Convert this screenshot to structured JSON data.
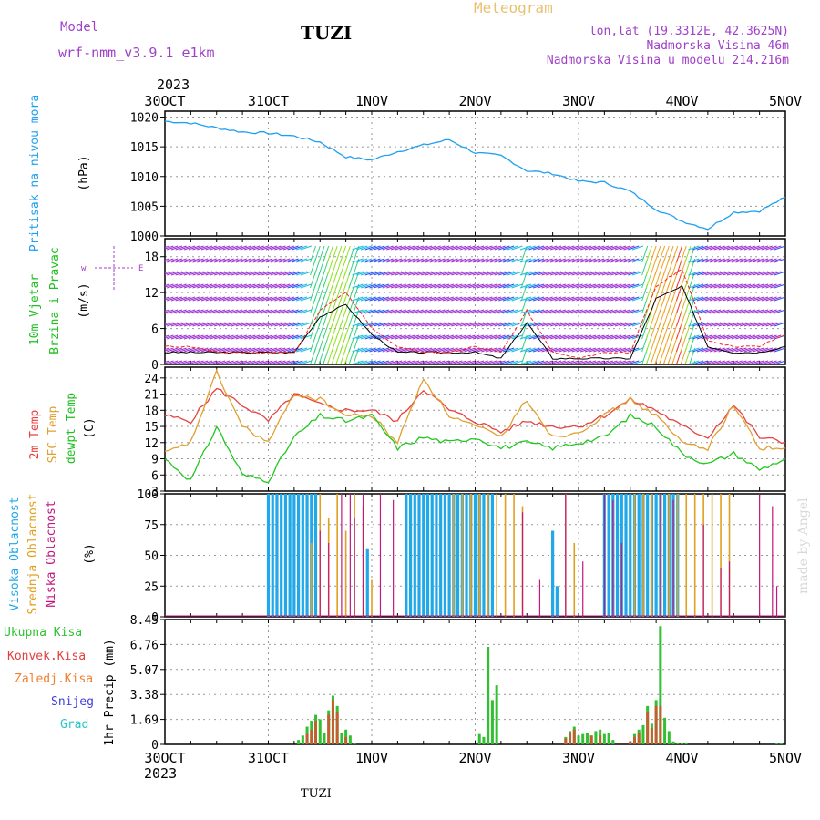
{
  "header": {
    "model_label": "Model",
    "model_name": "wrf-nmm_v3.9.1 e1km",
    "station": "TUZI",
    "meteogram": "Meteogram",
    "coords": "lon,lat (19.3312E, 42.3625N)",
    "elevation": "Nadmorska Visina 46m",
    "model_elevation": "Nadmorska Visina u modelu 214.216m",
    "footer_station": "TUZI",
    "watermark": "made by Angel"
  },
  "colors": {
    "pressure": "#1ea0f0",
    "wind_purple": "#9b30d0",
    "wind_blue": "#2a50f0",
    "temp2m": "#e84040",
    "sfctemp": "#e0a030",
    "dewpt": "#20c820",
    "cloud_high": "#20a8e8",
    "cloud_mid": "#e0a020",
    "cloud_low": "#c01880",
    "precip_total": "#30c030",
    "precip_conv": "#e04040",
    "precip_frz": "#f08030",
    "precip_snow": "#4040e0",
    "precip_grad": "#20c8c8"
  },
  "chart_data": [
    {
      "type": "line",
      "panel": "pressure",
      "ylabel": [
        "Pritisak na nivou mora",
        "(hPa)"
      ],
      "ylim": [
        1000,
        1021
      ],
      "yticks": [
        "1020",
        "1015",
        "1010",
        "1005",
        "1000"
      ],
      "x_hours": [
        0,
        6,
        12,
        18,
        24,
        30,
        36,
        42,
        48,
        54,
        60,
        66,
        72,
        78,
        84,
        90,
        96,
        102,
        108,
        114,
        120,
        126,
        132,
        138,
        144
      ],
      "series": [
        {
          "values": [
            1019.3,
            1019.0,
            1018.2,
            1017.5,
            1017.3,
            1016.8,
            1015.8,
            1013.3,
            1012.8,
            1014.2,
            1015.3,
            1016.2,
            1014.0,
            1013.5,
            1011.0,
            1010.5,
            1009.2,
            1009.0,
            1007.5,
            1004.5,
            1002.5,
            1001.2,
            1004.0,
            1004.2,
            1006.5
          ]
        }
      ]
    },
    {
      "type": "line",
      "panel": "wind",
      "ylabel": [
        "10m Vjetar",
        "Brzina i Pravac",
        "(m/s)"
      ],
      "ylim": [
        0,
        21
      ],
      "yticks": [
        "18",
        "12",
        "6",
        "0"
      ],
      "x_hours": [
        0,
        6,
        12,
        18,
        24,
        30,
        36,
        42,
        48,
        54,
        60,
        66,
        72,
        78,
        84,
        90,
        96,
        102,
        108,
        114,
        120,
        126,
        132,
        138,
        144
      ],
      "series": [
        {
          "name": "speed",
          "values": [
            2,
            2,
            2,
            2,
            2,
            2,
            8,
            10,
            5,
            2,
            2,
            2,
            2,
            1,
            7,
            1,
            1,
            1,
            1,
            11,
            13,
            3,
            2,
            2,
            3
          ]
        },
        {
          "name": "gust",
          "values": [
            3,
            3,
            2,
            2,
            2,
            2,
            9,
            12,
            6,
            3,
            2,
            2,
            3,
            2,
            9,
            2,
            1,
            2,
            2,
            13,
            16,
            4,
            3,
            3,
            5
          ]
        }
      ]
    },
    {
      "type": "line",
      "panel": "temperature",
      "ylabel": [
        "2m Temp",
        "SFC Temp",
        "dewpt Temp",
        "(C)"
      ],
      "ylim": [
        3,
        26
      ],
      "yticks": [
        "24",
        "21",
        "18",
        "15",
        "12",
        "9",
        "6",
        "3"
      ],
      "x_hours": [
        0,
        6,
        12,
        18,
        24,
        30,
        36,
        42,
        48,
        54,
        60,
        66,
        72,
        78,
        84,
        90,
        96,
        102,
        108,
        114,
        120,
        126,
        132,
        138,
        144
      ],
      "series": [
        {
          "name": "2m Temp",
          "values": [
            17,
            16,
            22,
            19,
            16,
            21,
            19,
            18,
            18,
            16,
            22,
            18,
            16,
            14,
            16,
            15,
            15,
            17,
            20,
            18,
            15,
            13,
            19,
            13,
            12
          ]
        },
        {
          "name": "SFC Temp",
          "values": [
            10,
            12,
            25,
            15,
            12,
            21,
            20,
            17,
            17,
            12,
            24,
            17,
            15,
            13,
            20,
            13,
            14,
            17,
            20,
            17,
            12,
            11,
            19,
            11,
            11
          ]
        },
        {
          "name": "dewpt Temp",
          "values": [
            9,
            5,
            15,
            6,
            5,
            13,
            17,
            16,
            17,
            11,
            13,
            12,
            13,
            11,
            12,
            11,
            12,
            13,
            17,
            15,
            10,
            8,
            10,
            7,
            9
          ]
        }
      ]
    },
    {
      "type": "bar",
      "panel": "clouds",
      "ylabel": [
        "Visoka Oblacnost",
        "Srednja Oblacnost",
        "Niska Oblacnost",
        "(%)"
      ],
      "ylim": [
        0,
        100
      ],
      "yticks": [
        "100",
        "75",
        "50",
        "25",
        "0"
      ],
      "series": [
        {
          "name": "Visoka Oblacnost",
          "hours": [
            24,
            25,
            26,
            27,
            28,
            29,
            30,
            31,
            32,
            33,
            34,
            35,
            47,
            56,
            57,
            58,
            59,
            60,
            61,
            62,
            63,
            64,
            65,
            66,
            67,
            68,
            69,
            70,
            71,
            72,
            73,
            74,
            75,
            76,
            90,
            91,
            102,
            103,
            104,
            105,
            106,
            107,
            108,
            109,
            110,
            111,
            112,
            113,
            114,
            115,
            116,
            117,
            118,
            119
          ],
          "values": [
            100,
            100,
            100,
            100,
            100,
            100,
            100,
            100,
            100,
            100,
            100,
            100,
            55,
            100,
            100,
            100,
            100,
            100,
            100,
            100,
            100,
            100,
            100,
            100,
            100,
            100,
            100,
            100,
            100,
            100,
            100,
            100,
            100,
            100,
            70,
            25,
            100,
            100,
            100,
            100,
            100,
            100,
            100,
            100,
            100,
            100,
            100,
            100,
            100,
            100,
            100,
            100,
            100,
            100
          ]
        },
        {
          "name": "Srednja Oblacnost",
          "hours": [
            34,
            36,
            38,
            40,
            42,
            44,
            46,
            48,
            67,
            69,
            71,
            73,
            75,
            77,
            79,
            81,
            83,
            93,
            95,
            109,
            111,
            113,
            115,
            117,
            119,
            121,
            123,
            125,
            127,
            129,
            131
          ],
          "values": [
            60,
            100,
            80,
            100,
            70,
            100,
            90,
            30,
            100,
            100,
            100,
            100,
            100,
            100,
            100,
            100,
            90,
            100,
            60,
            100,
            100,
            100,
            100,
            100,
            100,
            100,
            100,
            100,
            100,
            100,
            100
          ]
        },
        {
          "name": "Niska Oblacnost",
          "hours": [
            36,
            38,
            41,
            43,
            44,
            46,
            50,
            53,
            83,
            87,
            93,
            97,
            102,
            104,
            106,
            115,
            118,
            125,
            129,
            131,
            138,
            141,
            142
          ],
          "values": [
            70,
            60,
            100,
            100,
            80,
            100,
            100,
            95,
            85,
            30,
            100,
            45,
            100,
            95,
            60,
            100,
            95,
            75,
            40,
            45,
            100,
            90,
            25
          ]
        }
      ]
    },
    {
      "type": "bar",
      "panel": "precip",
      "ylabel": [
        "1hr Precip (mm)"
      ],
      "legend": [
        "Ukupna Kisa",
        "Konvek.Kisa",
        "Zaledj.Kisa",
        "Snijeg",
        "Grad"
      ],
      "ylim": [
        0,
        8.45
      ],
      "yticks": [
        "8.45",
        "6.76",
        "5.07",
        "3.38",
        "1.69",
        "0"
      ],
      "series": [
        {
          "name": "Ukupna Kisa",
          "hours": [
            31,
            32,
            33,
            34,
            35,
            36,
            37,
            38,
            39,
            40,
            41,
            42,
            43,
            44,
            73,
            74,
            75,
            76,
            77,
            93,
            94,
            95,
            96,
            97,
            98,
            99,
            100,
            101,
            102,
            103,
            104,
            108,
            109,
            110,
            111,
            112,
            113,
            114,
            115,
            116,
            117,
            118,
            119,
            120,
            121,
            142,
            143
          ],
          "values": [
            0.3,
            0.6,
            1.2,
            1.6,
            2.0,
            1.7,
            0.8,
            2.3,
            3.3,
            2.6,
            0.8,
            1.0,
            0.6,
            0.1,
            0.7,
            0.5,
            6.6,
            3.0,
            4.0,
            0.5,
            0.9,
            1.2,
            0.6,
            0.7,
            0.8,
            0.6,
            0.9,
            1.0,
            0.7,
            0.8,
            0.3,
            0.2,
            0.7,
            1.0,
            1.3,
            2.6,
            1.4,
            3.0,
            8.0,
            1.8,
            0.9,
            0.2,
            0.1,
            0.1,
            0.1,
            0.1,
            0.1
          ]
        },
        {
          "name": "Konvek.Kisa",
          "hours": [
            33,
            34,
            35,
            38,
            39,
            40,
            42,
            93,
            94,
            95,
            99,
            101,
            108,
            109,
            110,
            112,
            113,
            114,
            115
          ],
          "values": [
            0.7,
            1.0,
            1.6,
            2.0,
            3.0,
            2.2,
            0.5,
            0.4,
            0.8,
            1.0,
            0.6,
            0.6,
            0.2,
            0.5,
            0.8,
            2.2,
            1.1,
            2.6,
            2.6
          ]
        }
      ]
    }
  ],
  "xaxis": {
    "year_top": "2023",
    "year_bottom": "2023",
    "ticks": [
      "30OCT",
      "31OCT",
      "1NOV",
      "2NOV",
      "3NOV",
      "4NOV",
      "5NOV"
    ],
    "tick_hours": [
      0,
      24,
      48,
      72,
      96,
      120,
      144
    ],
    "max_hours": 144
  }
}
